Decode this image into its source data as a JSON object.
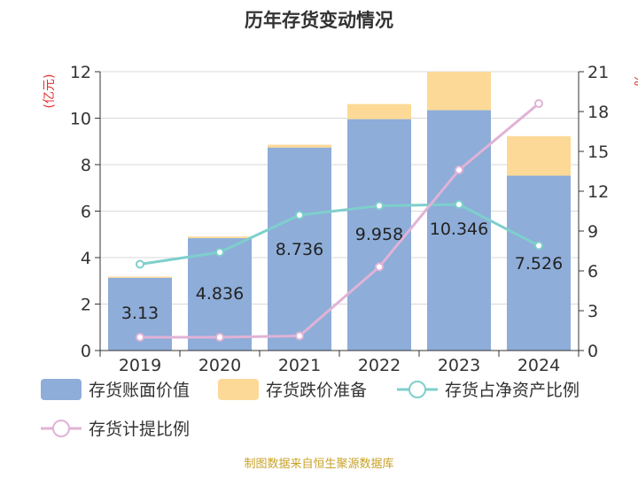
{
  "chart_data": {
    "type": "bar",
    "title": "历年存货变动情况",
    "y_left_unit": "(亿元)",
    "y_right_unit": "%",
    "categories": [
      "2019",
      "2020",
      "2021",
      "2022",
      "2023",
      "2024"
    ],
    "y_left_lim": [
      0,
      12
    ],
    "y_left_ticks": [
      "0",
      "2",
      "4",
      "6",
      "8",
      "10",
      "12"
    ],
    "y_right_lim": [
      0,
      21
    ],
    "y_right_ticks": [
      "0",
      "3",
      "6",
      "9",
      "12",
      "15",
      "18",
      "21"
    ],
    "grid": true,
    "legend_position": "bottom",
    "series": [
      {
        "name": "存货账面价值",
        "kind": "bar",
        "axis": "left",
        "values": [
          3.13,
          4.836,
          8.736,
          9.958,
          10.346,
          7.526
        ],
        "labels": [
          "3.13",
          "4.836",
          "8.736",
          "9.958",
          "10.346",
          "7.526"
        ],
        "color": "#8eadd9"
      },
      {
        "name": "存货跌价准备",
        "kind": "bar-stacked",
        "axis": "left",
        "values": [
          0.05,
          0.07,
          0.12,
          0.65,
          1.65,
          1.7
        ],
        "color": "#fcd997"
      },
      {
        "name": "存货占净资产比例",
        "kind": "line",
        "axis": "right",
        "values": [
          6.5,
          7.4,
          10.2,
          10.9,
          11.0,
          7.9
        ],
        "color": "#7ecfcc"
      },
      {
        "name": "存货计提比例",
        "kind": "line",
        "axis": "right",
        "values": [
          1.0,
          1.0,
          1.1,
          6.3,
          13.6,
          18.6
        ],
        "color": "#e0b3d6"
      }
    ]
  },
  "footer": {
    "source": "制图数据来自恒生聚源数据库"
  }
}
